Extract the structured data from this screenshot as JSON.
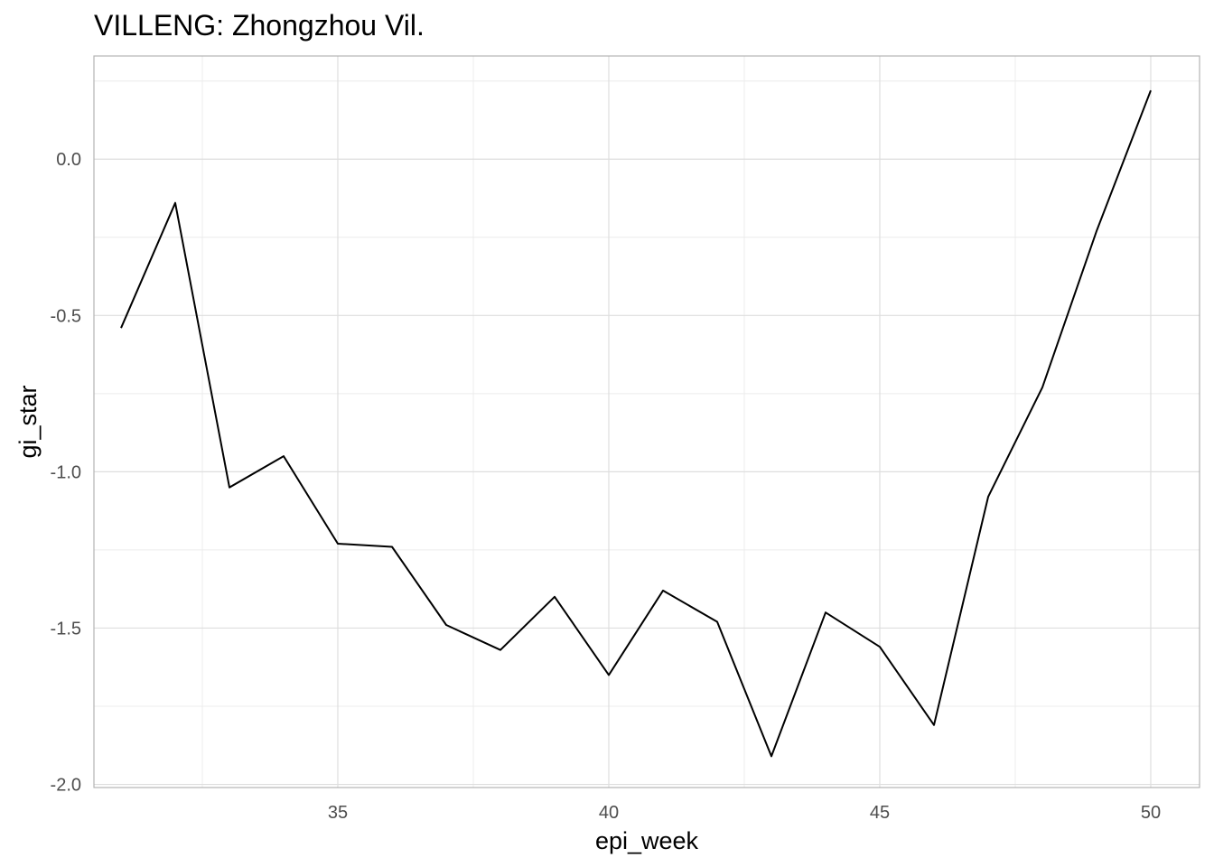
{
  "chart_data": {
    "type": "line",
    "title": "VILLENG: Zhongzhou Vil.",
    "xlabel": "epi_week",
    "ylabel": "gi_star",
    "xlim": [
      30.5,
      50.9
    ],
    "ylim": [
      -2.01,
      0.33
    ],
    "x_ticks": [
      35,
      40,
      45,
      50
    ],
    "x_tick_labels": [
      "35",
      "40",
      "45",
      "50"
    ],
    "y_ticks": [
      -2.0,
      -1.5,
      -1.0,
      -0.5,
      0.0
    ],
    "y_tick_labels": [
      "-2.0",
      "-1.5",
      "-1.0",
      "-0.5",
      "0.0"
    ],
    "grid": true,
    "legend": "none",
    "line_color": "#000000",
    "series": [
      {
        "x": [
          31,
          32,
          33,
          34,
          35,
          36,
          37,
          38,
          39,
          40,
          41,
          42,
          43,
          44,
          45,
          46,
          47,
          48,
          49,
          50
        ],
        "values": [
          -0.54,
          -0.14,
          -1.05,
          -0.95,
          -1.23,
          -1.24,
          -1.49,
          -1.57,
          -1.4,
          -1.65,
          -1.38,
          -1.48,
          -1.91,
          -1.45,
          -1.56,
          -1.81,
          -1.08,
          -0.73,
          -0.23,
          0.22
        ]
      }
    ]
  }
}
